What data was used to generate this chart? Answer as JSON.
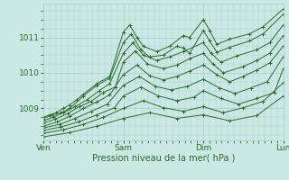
{
  "xlabel": "Pression niveau de la mer( hPa )",
  "bg_color": "#cce8e4",
  "line_color": "#2d6b2d",
  "grid_color": "#aacccc",
  "yticks": [
    1009,
    1010,
    1011
  ],
  "xtick_labels": [
    "Ven",
    "Sam",
    "Dim",
    "Lun"
  ],
  "xlim": [
    0,
    3
  ],
  "ylim": [
    1008.1,
    1011.95
  ],
  "series": [
    [
      0.0,
      1008.75,
      0.08,
      1008.82,
      0.16,
      1008.88,
      0.25,
      1009.0,
      0.33,
      1009.1,
      0.42,
      1009.25,
      0.5,
      1009.4,
      0.67,
      1009.7,
      0.83,
      1009.9,
      1.0,
      1011.15,
      1.08,
      1011.35,
      1.17,
      1011.0,
      1.25,
      1010.75,
      1.42,
      1010.6,
      1.58,
      1010.75,
      1.75,
      1011.05,
      1.83,
      1011.0,
      2.0,
      1011.5,
      2.08,
      1011.2,
      2.17,
      1010.8,
      2.33,
      1010.95,
      2.58,
      1011.1,
      2.75,
      1011.3,
      3.0,
      1011.8
    ],
    [
      0.0,
      1008.72,
      0.1,
      1008.8,
      0.22,
      1008.88,
      0.33,
      1009.0,
      0.5,
      1009.35,
      0.67,
      1009.65,
      0.83,
      1009.85,
      1.0,
      1010.85,
      1.1,
      1011.1,
      1.22,
      1010.65,
      1.33,
      1010.45,
      1.5,
      1010.5,
      1.67,
      1010.75,
      1.75,
      1010.7,
      1.83,
      1010.55,
      2.0,
      1011.2,
      2.08,
      1010.9,
      2.17,
      1010.58,
      2.33,
      1010.72,
      2.58,
      1010.9,
      2.75,
      1011.1,
      3.0,
      1011.65
    ],
    [
      0.0,
      1008.65,
      0.12,
      1008.75,
      0.25,
      1008.88,
      0.4,
      1009.05,
      0.55,
      1009.25,
      0.7,
      1009.5,
      0.83,
      1009.7,
      1.0,
      1010.55,
      1.12,
      1010.85,
      1.25,
      1010.5,
      1.42,
      1010.35,
      1.58,
      1010.45,
      1.75,
      1010.6,
      2.0,
      1010.85,
      2.1,
      1010.55,
      2.22,
      1010.3,
      2.42,
      1010.48,
      2.67,
      1010.65,
      2.83,
      1010.85,
      3.0,
      1011.35
    ],
    [
      0.0,
      1008.58,
      0.15,
      1008.7,
      0.3,
      1008.85,
      0.45,
      1009.05,
      0.6,
      1009.2,
      0.75,
      1009.45,
      0.9,
      1009.6,
      1.0,
      1010.3,
      1.15,
      1010.62,
      1.3,
      1010.25,
      1.5,
      1010.12,
      1.67,
      1010.22,
      1.83,
      1010.4,
      2.0,
      1010.55,
      2.12,
      1010.25,
      2.25,
      1010.0,
      2.5,
      1010.18,
      2.67,
      1010.35,
      2.83,
      1010.55,
      3.0,
      1011.05
    ],
    [
      0.0,
      1008.5,
      0.17,
      1008.62,
      0.33,
      1008.78,
      0.5,
      1009.0,
      0.67,
      1009.18,
      0.83,
      1009.38,
      1.0,
      1009.95,
      1.17,
      1010.22,
      1.33,
      1009.92,
      1.5,
      1009.8,
      1.67,
      1009.9,
      1.83,
      1010.05,
      2.0,
      1010.22,
      2.17,
      1009.95,
      2.33,
      1009.75,
      2.5,
      1009.9,
      2.67,
      1010.08,
      2.83,
      1010.28,
      3.0,
      1010.75
    ],
    [
      0.0,
      1008.45,
      0.2,
      1008.55,
      0.4,
      1008.72,
      0.6,
      1008.92,
      0.8,
      1009.12,
      1.0,
      1009.65,
      1.2,
      1009.9,
      1.4,
      1009.62,
      1.6,
      1009.52,
      1.8,
      1009.62,
      2.0,
      1009.82,
      2.2,
      1009.58,
      2.4,
      1009.42,
      2.6,
      1009.58,
      2.8,
      1009.75,
      3.0,
      1010.45
    ],
    [
      0.0,
      1008.38,
      0.22,
      1008.48,
      0.44,
      1008.62,
      0.67,
      1008.82,
      0.89,
      1009.02,
      1.0,
      1009.35,
      1.22,
      1009.6,
      1.44,
      1009.35,
      1.67,
      1009.22,
      1.89,
      1009.32,
      2.0,
      1009.5,
      2.22,
      1009.28,
      2.44,
      1009.12,
      2.67,
      1009.28,
      2.89,
      1009.45,
      3.0,
      1010.12
    ],
    [
      0.0,
      1008.3,
      0.25,
      1008.4,
      0.5,
      1008.55,
      0.75,
      1008.75,
      1.0,
      1009.0,
      1.25,
      1009.22,
      1.5,
      1009.02,
      1.75,
      1008.92,
      2.0,
      1009.05,
      2.25,
      1008.88,
      2.5,
      1009.02,
      2.75,
      1009.2,
      3.0,
      1009.72
    ],
    [
      0.0,
      1008.2,
      0.33,
      1008.32,
      0.67,
      1008.5,
      1.0,
      1008.72,
      1.33,
      1008.88,
      1.67,
      1008.72,
      2.0,
      1008.82,
      2.33,
      1008.65,
      2.67,
      1008.8,
      3.0,
      1009.35
    ]
  ]
}
